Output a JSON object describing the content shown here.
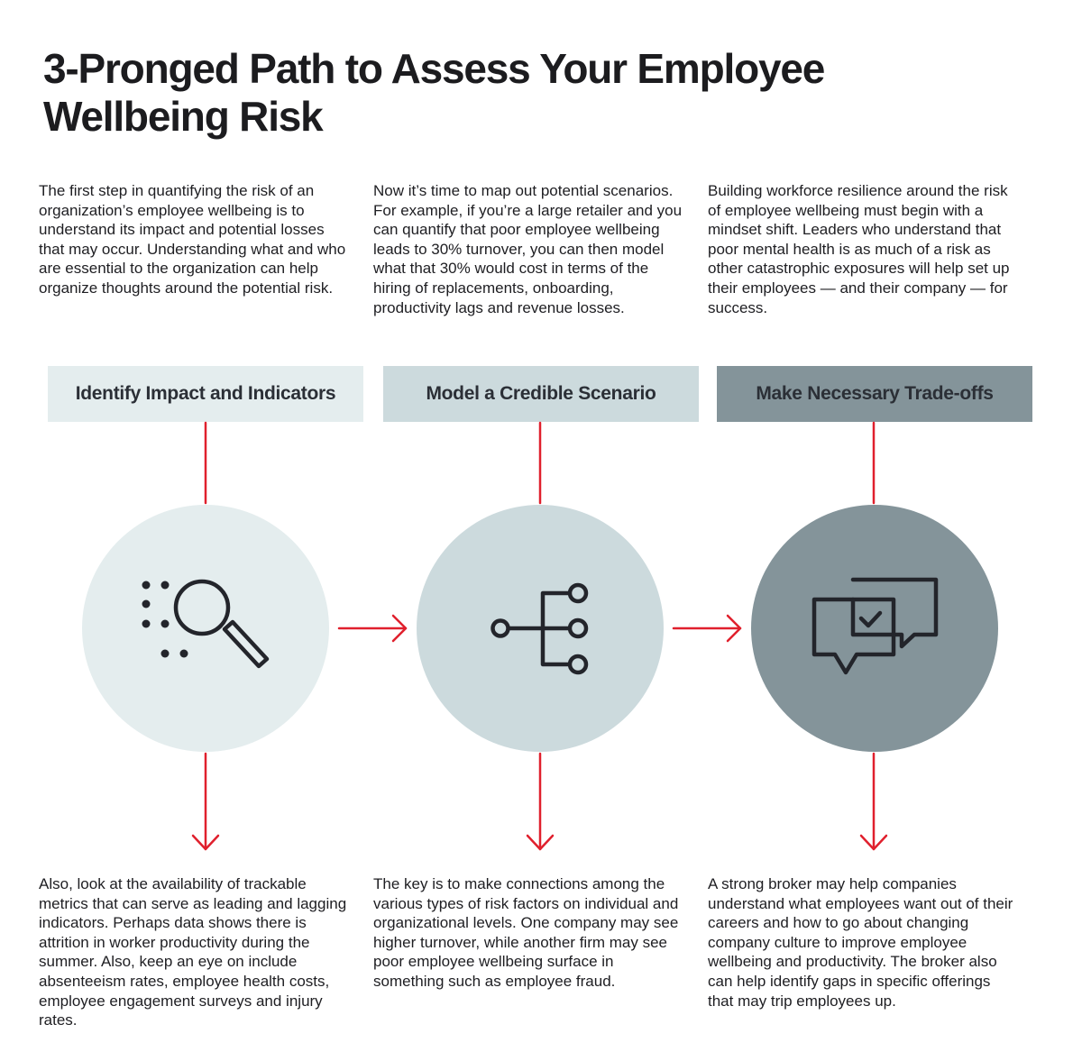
{
  "title": "3-Pronged Path to Assess Your Employee Wellbeing Risk",
  "colors": {
    "accent_red": "#e0202d",
    "icon_stroke": "#23252b",
    "step1_fill": "#e4edee",
    "step2_fill": "#ccdadd",
    "step3_fill": "#84949a"
  },
  "steps": [
    {
      "label": "Identify Impact and Indicators",
      "icon": "magnifier-dots-icon",
      "top_text": "The first step in quantifying the risk of an organization’s employee wellbeing is to understand its impact and potential losses that may occur. Understanding what and who are essential to the organization can help organize thoughts around the potential risk.",
      "bottom_text": "Also, look at the availability of trackable metrics that can serve as leading and lagging indicators. Perhaps data shows there is attrition in worker productivity during the summer. Also, keep an eye on include absenteeism rates, employee health costs, employee engagement surveys and injury rates."
    },
    {
      "label": "Model a Credible Scenario",
      "icon": "branching-tree-icon",
      "top_text": "Now it’s time to map out potential scenarios. For example, if you’re a large retailer and you can quantify that poor employee wellbeing leads to 30% turnover, you can then model what that 30% would cost in terms of the hiring of replacements, onboarding, productivity lags and revenue losses.",
      "bottom_text": "The key is to make connections among the various types of risk factors on individual and organizational levels. One company may see higher turnover, while another firm may see poor employee wellbeing surface in something such as employee fraud."
    },
    {
      "label": "Make Necessary Trade-offs",
      "icon": "chat-checkmark-icon",
      "top_text": "Building workforce resilience around the risk of employee wellbeing must begin with a mindset shift. Leaders who understand that poor mental health is as much of a risk as other catastrophic exposures will help set up their employees — and their company — for success.",
      "bottom_text": "A strong broker may help companies understand what employees want out of their careers and how to go about changing company culture to improve employee wellbeing and productivity. The broker also can help identify gaps in specific offerings that may trip employees up."
    }
  ]
}
